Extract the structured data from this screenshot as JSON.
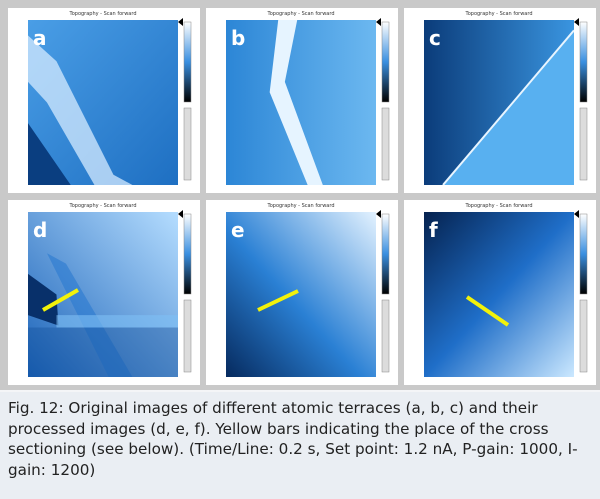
{
  "panels": [
    {
      "label": "a",
      "title": "Topography - Scan forward"
    },
    {
      "label": "b",
      "title": "Topography - Scan forward"
    },
    {
      "label": "c",
      "title": "Topography - Scan forward"
    },
    {
      "label": "d",
      "title": "Topography - Scan forward"
    },
    {
      "label": "e",
      "title": "Topography - Scan forward"
    },
    {
      "label": "f",
      "title": "Topography - Scan forward"
    }
  ],
  "caption": "Fig. 12: Original images of different atomic terraces (a, b, c) and their processed images (d, e, f). Yellow bars indicating the place of the cross sectioning (see below). (Time/Line: 0.2 s, Set point: 1.2 nA, P-gain: 1000, I-gain: 1200)"
}
